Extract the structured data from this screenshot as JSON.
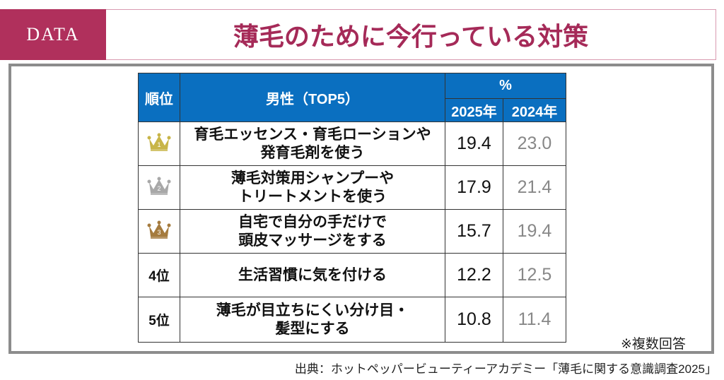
{
  "header": {
    "tag": "DATA",
    "title": "薄毛のために今行っている対策",
    "accent_color": "#b0305c"
  },
  "chart_data": {
    "type": "table",
    "columns": {
      "rank": "順位",
      "item": "男性（TOP5）",
      "unit": "%",
      "years": [
        "2025年",
        "2024年"
      ]
    },
    "rows": [
      {
        "rank": "1",
        "rank_icon": "gold-crown-icon",
        "lines": [
          "育毛エッセンス・育毛ローションや",
          "発育毛剤を使う"
        ],
        "v2025": "19.4",
        "v2024": "23.0"
      },
      {
        "rank": "2",
        "rank_icon": "silver-crown-icon",
        "lines": [
          "薄毛対策用シャンプーや",
          "トリートメントを使う"
        ],
        "v2025": "17.9",
        "v2024": "21.4"
      },
      {
        "rank": "3",
        "rank_icon": "bronze-crown-icon",
        "lines": [
          "自宅で自分の手だけで",
          "頭皮マッサージをする"
        ],
        "v2025": "15.7",
        "v2024": "19.4"
      },
      {
        "rank": "4位",
        "lines": [
          "生活習慣に気を付ける"
        ],
        "v2025": "12.2",
        "v2024": "12.5"
      },
      {
        "rank": "5位",
        "lines": [
          "薄毛が目立ちにくい分け目・",
          "髪型にする"
        ],
        "v2025": "10.8",
        "v2024": "11.4"
      }
    ],
    "header_color": "#0a6fc0",
    "crown_colors": {
      "gold": "#c8b548",
      "silver": "#a8a8a8",
      "bronze": "#a57b3e"
    }
  },
  "note": "※複数回答",
  "source": "出典：ホットペッパービューティーアカデミー「薄毛に関する意識調査2025」"
}
